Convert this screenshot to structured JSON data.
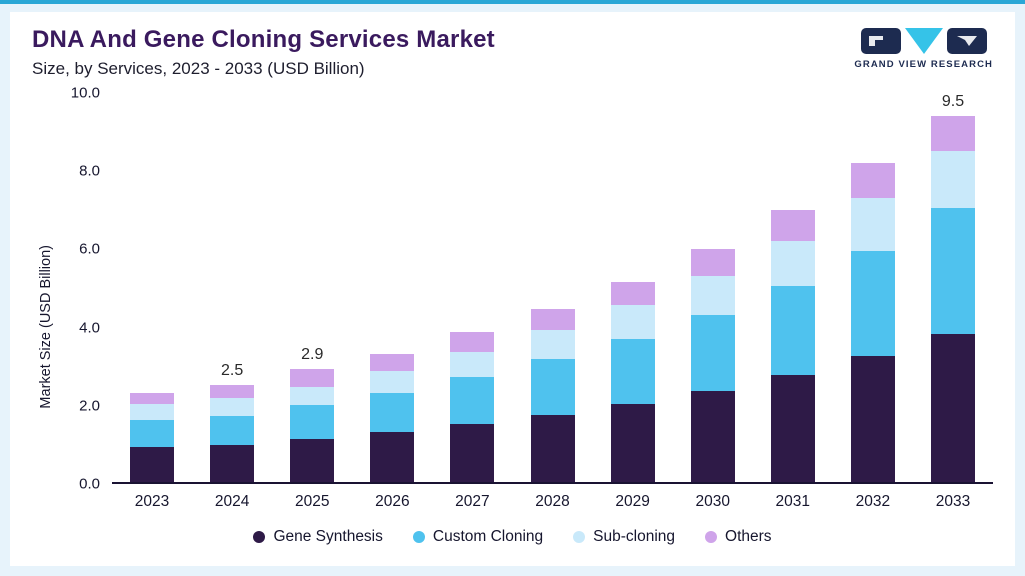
{
  "header": {
    "title": "DNA And Gene Cloning Services Market",
    "subtitle": "Size, by Services, 2023 - 2033 (USD Billion)"
  },
  "logo": {
    "text": "GRAND VIEW RESEARCH"
  },
  "chart_data": {
    "type": "bar",
    "stacked": true,
    "title": "DNA And Gene Cloning Services Market Size, by Services, 2023 - 2033 (USD Billion)",
    "ylabel": "Market Size (USD Billion)",
    "ylim": [
      0,
      10
    ],
    "yticks": [
      "0.0",
      "2.0",
      "4.0",
      "6.0",
      "8.0",
      "10.0"
    ],
    "grid": false,
    "legend_position": "bottom",
    "categories": [
      "2023",
      "2024",
      "2025",
      "2026",
      "2027",
      "2028",
      "2029",
      "2030",
      "2031",
      "2032",
      "2033"
    ],
    "series": [
      {
        "name": "Gene Synthesis",
        "color": "#2e1a47",
        "values": [
          0.9,
          0.95,
          1.1,
          1.28,
          1.48,
          1.73,
          2.0,
          2.33,
          2.75,
          3.25,
          3.85
        ]
      },
      {
        "name": "Custom Cloning",
        "color": "#4fc2ee",
        "values": [
          0.7,
          0.75,
          0.88,
          1.02,
          1.22,
          1.42,
          1.67,
          1.97,
          2.3,
          2.7,
          3.25
        ]
      },
      {
        "name": "Sub-cloning",
        "color": "#c9e9fa",
        "values": [
          0.4,
          0.45,
          0.47,
          0.55,
          0.65,
          0.75,
          0.88,
          1.0,
          1.15,
          1.35,
          1.5
        ]
      },
      {
        "name": "Others",
        "color": "#cfa4ea",
        "values": [
          0.3,
          0.35,
          0.45,
          0.45,
          0.5,
          0.55,
          0.6,
          0.7,
          0.8,
          0.9,
          0.9
        ]
      }
    ],
    "totals": [
      2.3,
      2.5,
      2.9,
      3.3,
      3.85,
      4.45,
      5.15,
      6.0,
      7.0,
      8.2,
      9.5
    ],
    "annotations": [
      "",
      "2.5",
      "2.9",
      "",
      "",
      "",
      "",
      "",
      "",
      "",
      "9.5"
    ]
  }
}
